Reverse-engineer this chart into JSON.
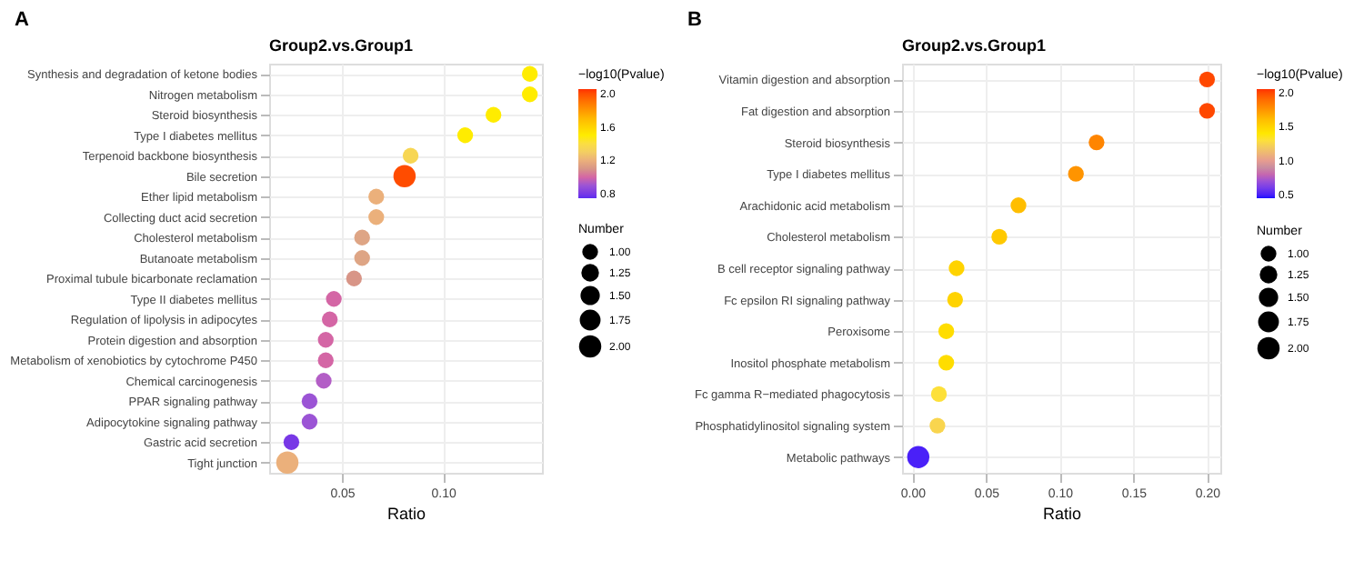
{
  "chart_data": [
    {
      "type": "bubble",
      "title": "Group2.vs.Group1",
      "xlabel": "Ratio",
      "clabel": "−log10(Pvalue)",
      "legend_title": "Number",
      "annotations": [
        "A"
      ],
      "orientation": "horizontal",
      "categories": [
        "Synthesis and degradation of ketone bodies",
        "Nitrogen metabolism",
        "Steroid biosynthesis",
        "Type I diabetes mellitus",
        "Terpenoid backbone biosynthesis",
        "Bile secretion",
        "Ether lipid metabolism",
        "Collecting duct acid secretion",
        "Cholesterol metabolism",
        "Butanoate metabolism",
        "Proximal tubule bicarbonate reclamation",
        "Type II diabetes mellitus",
        "Regulation of lipolysis in adipocytes",
        "Protein digestion and absorption",
        "Metabolism of xenobiotics by cytochrome P450",
        "Chemical carcinogenesis",
        "PPAR signaling pathway",
        "Adipocytokine signaling pathway",
        "Gastric acid secretion",
        "Tight junction"
      ],
      "values": [
        0.143,
        0.143,
        0.125,
        0.111,
        0.084,
        0.081,
        0.067,
        0.067,
        0.06,
        0.06,
        0.056,
        0.046,
        0.044,
        0.042,
        0.042,
        0.041,
        0.034,
        0.034,
        0.025,
        0.023
      ],
      "sizes": [
        1,
        1,
        1,
        1,
        1,
        2,
        1,
        1,
        1,
        1,
        1,
        1,
        1,
        1,
        1,
        1,
        1,
        1,
        1,
        2
      ],
      "cvalues": [
        1.5,
        1.5,
        1.5,
        1.5,
        1.35,
        2.0,
        1.2,
        1.2,
        1.15,
        1.15,
        1.1,
        1.0,
        1.0,
        1.0,
        1.0,
        0.95,
        0.9,
        0.9,
        0.8,
        1.2
      ],
      "size_legend": [
        {
          "value": 1.0,
          "label": "1.00"
        },
        {
          "value": 1.25,
          "label": "1.25"
        },
        {
          "value": 1.5,
          "label": "1.50"
        },
        {
          "value": 1.75,
          "label": "1.75"
        },
        {
          "value": 2.0,
          "label": "2.00"
        }
      ],
      "clim": [
        0.75,
        2.05
      ],
      "cticks": [
        {
          "value": 0.8,
          "label": "0.8"
        },
        {
          "value": 1.2,
          "label": "1.2"
        },
        {
          "value": 1.6,
          "label": "1.6"
        },
        {
          "value": 2.0,
          "label": "2.0"
        }
      ],
      "xlim": [
        0.014,
        0.149
      ],
      "xticks": [
        {
          "value": 0.05,
          "label": "0.05"
        },
        {
          "value": 0.1,
          "label": "0.10"
        }
      ],
      "grid": true
    },
    {
      "type": "bubble",
      "title": "Group2.vs.Group1",
      "xlabel": "Ratio",
      "clabel": "−log10(Pvalue)",
      "legend_title": "Number",
      "annotations": [
        "B"
      ],
      "orientation": "horizontal",
      "categories": [
        "Vitamin digestion and absorption",
        "Fat digestion and absorption",
        "Steroid biosynthesis",
        "Type I diabetes mellitus",
        "Arachidonic acid metabolism",
        "Cholesterol metabolism",
        "B cell receptor signaling pathway",
        "Fc epsilon RI signaling pathway",
        "Peroxisome",
        "Inositol phosphate metabolism",
        "Fc gamma R−mediated phagocytosis",
        "Phosphatidylinositol signaling system",
        "Metabolic pathways"
      ],
      "values": [
        0.2,
        0.2,
        0.125,
        0.111,
        0.072,
        0.059,
        0.03,
        0.029,
        0.023,
        0.023,
        0.018,
        0.017,
        0.004
      ],
      "sizes": [
        1,
        1,
        1,
        1,
        1,
        1,
        1,
        1,
        1,
        1,
        1,
        1,
        2
      ],
      "cvalues": [
        2.0,
        2.0,
        1.8,
        1.75,
        1.6,
        1.55,
        1.5,
        1.5,
        1.45,
        1.45,
        1.3,
        1.25,
        0.5
      ],
      "size_legend": [
        {
          "value": 1.0,
          "label": "1.00"
        },
        {
          "value": 1.25,
          "label": "1.25"
        },
        {
          "value": 1.5,
          "label": "1.50"
        },
        {
          "value": 1.75,
          "label": "1.75"
        },
        {
          "value": 2.0,
          "label": "2.00"
        }
      ],
      "clim": [
        0.45,
        2.05
      ],
      "cticks": [
        {
          "value": 0.5,
          "label": "0.5"
        },
        {
          "value": 1.0,
          "label": "1.0"
        },
        {
          "value": 1.5,
          "label": "1.5"
        },
        {
          "value": 2.0,
          "label": "2.0"
        }
      ],
      "xlim": [
        -0.007,
        0.209
      ],
      "xticks": [
        {
          "value": 0.0,
          "label": "0.00"
        },
        {
          "value": 0.05,
          "label": "0.05"
        },
        {
          "value": 0.1,
          "label": "0.10"
        },
        {
          "value": 0.15,
          "label": "0.15"
        },
        {
          "value": 0.2,
          "label": "0.20"
        }
      ],
      "grid": true
    }
  ]
}
